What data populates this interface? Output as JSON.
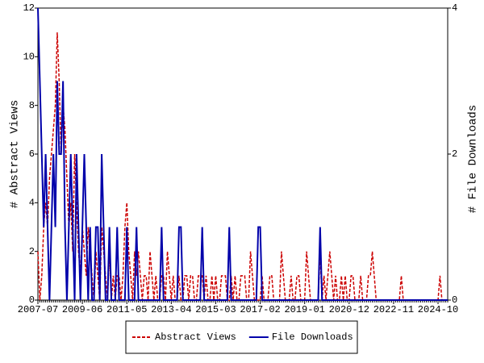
{
  "chart_data": {
    "type": "line",
    "categories": [
      "2007-07",
      null,
      null,
      null,
      null,
      null,
      null,
      null,
      null,
      null,
      null,
      null,
      null,
      null,
      null,
      null,
      null,
      null,
      null,
      null,
      null,
      null,
      null,
      "2009-06",
      null,
      null,
      null,
      null,
      null,
      null,
      null,
      null,
      null,
      null,
      null,
      null,
      null,
      null,
      null,
      null,
      null,
      null,
      null,
      null,
      null,
      null,
      "2011-05",
      null,
      null,
      null,
      null,
      null,
      null,
      null,
      null,
      null,
      null,
      null,
      null,
      null,
      null,
      null,
      null,
      null,
      null,
      null,
      null,
      null,
      null,
      "2013-04",
      null,
      null,
      null,
      null,
      null,
      null,
      null,
      null,
      null,
      null,
      null,
      null,
      null,
      null,
      null,
      null,
      null,
      null,
      null,
      null,
      null,
      null,
      "2015-03",
      null,
      null,
      null,
      null,
      null,
      null,
      null,
      null,
      null,
      null,
      null,
      null,
      null,
      null,
      null,
      null,
      null,
      null,
      null,
      null,
      null,
      null,
      "2017-02",
      null,
      null,
      null,
      null,
      null,
      null,
      null,
      null,
      null,
      null,
      null,
      null,
      null,
      null,
      null,
      null,
      null,
      null,
      null,
      null,
      null,
      null,
      "2019-01",
      null,
      null,
      null,
      null,
      null,
      null,
      null,
      null,
      null,
      null,
      null,
      null,
      null,
      null,
      null,
      null,
      null,
      null,
      null,
      null,
      null,
      null,
      "2020-12",
      null,
      null,
      null,
      null,
      null,
      null,
      null,
      null,
      null,
      null,
      null,
      null,
      null,
      null,
      null,
      null,
      null,
      null,
      null,
      null,
      null,
      null,
      "2022-11",
      null,
      null,
      null,
      null,
      null,
      null,
      null,
      null,
      null,
      null,
      null,
      null,
      null,
      null,
      null,
      null,
      null,
      null,
      null,
      null,
      null,
      null,
      "2024-10",
      null,
      null,
      null,
      null,
      null
    ],
    "series": [
      {
        "name": "Abstract Views",
        "color": "#cc0000",
        "line_style": "dashed",
        "axis": "y",
        "values": [
          2,
          0,
          1,
          3,
          4,
          3,
          5,
          6,
          7,
          8,
          11,
          9,
          6,
          8,
          7,
          5,
          3,
          4,
          2,
          6,
          4,
          2,
          1,
          3,
          2,
          1,
          3,
          2,
          1,
          0,
          2,
          1,
          0,
          3,
          2,
          1,
          0,
          2,
          0,
          1,
          0,
          1,
          1,
          0,
          1,
          3,
          4,
          2,
          1,
          0,
          2,
          1,
          2,
          1,
          0,
          1,
          1,
          0,
          2,
          1,
          0,
          1,
          0,
          0,
          1,
          1,
          0,
          2,
          1,
          0,
          1,
          0,
          0,
          1,
          0,
          0,
          1,
          1,
          0,
          1,
          1,
          0,
          0,
          1,
          1,
          1,
          0,
          1,
          0,
          0,
          1,
          0,
          1,
          0,
          0,
          1,
          1,
          1,
          0,
          0,
          1,
          0,
          1,
          0,
          0,
          1,
          1,
          1,
          0,
          0,
          2,
          1,
          0,
          0,
          0,
          0,
          1,
          0,
          0,
          0,
          1,
          1,
          0,
          0,
          0,
          0,
          2,
          1,
          0,
          0,
          0,
          1,
          0,
          0,
          1,
          1,
          0,
          0,
          0,
          2,
          1,
          0,
          0,
          0,
          0,
          0,
          2,
          0,
          1,
          0,
          1,
          2,
          1,
          0,
          1,
          0,
          0,
          1,
          0,
          1,
          0,
          0,
          1,
          1,
          0,
          0,
          0,
          1,
          0,
          0,
          0,
          1,
          1,
          2,
          1,
          0,
          0,
          0,
          0,
          0,
          0,
          0,
          0,
          0,
          0,
          0,
          0,
          0,
          1,
          0,
          0,
          0,
          0,
          0,
          0,
          0,
          0,
          0,
          0,
          0,
          0,
          0,
          0,
          0,
          0,
          0,
          0,
          0,
          1,
          0,
          0,
          0,
          0
        ]
      },
      {
        "name": "File Downloads",
        "color": "#0000aa",
        "line_style": "solid",
        "axis": "y2",
        "values": [
          4,
          3,
          2,
          1,
          2,
          1,
          0,
          1,
          2,
          1,
          3,
          2,
          2,
          3,
          1,
          0,
          1,
          2,
          1,
          0,
          2,
          1,
          0,
          1,
          2,
          1,
          0,
          1,
          0,
          0,
          1,
          1,
          0,
          2,
          1,
          0,
          0,
          1,
          0,
          0,
          0,
          1,
          0,
          0,
          0,
          0,
          1,
          0,
          0,
          0,
          0,
          1,
          0,
          0,
          0,
          0,
          0,
          0,
          0,
          0,
          0,
          0,
          0,
          0,
          1,
          0,
          0,
          0,
          0,
          0,
          0,
          0,
          0,
          1,
          1,
          0,
          0,
          0,
          0,
          0,
          0,
          0,
          0,
          0,
          0,
          1,
          0,
          0,
          0,
          0,
          0,
          0,
          0,
          0,
          0,
          0,
          0,
          0,
          0,
          1,
          0,
          0,
          0,
          0,
          0,
          0,
          0,
          0,
          0,
          0,
          0,
          0,
          0,
          0,
          1,
          1,
          0,
          0,
          0,
          0,
          0,
          0,
          0,
          0,
          0,
          0,
          0,
          0,
          0,
          0,
          0,
          0,
          0,
          0,
          0,
          0,
          0,
          0,
          0,
          0,
          0,
          0,
          0,
          0,
          0,
          0,
          1,
          0,
          0,
          0,
          0,
          0,
          0,
          0,
          0,
          0,
          0,
          0,
          0,
          0,
          0,
          0,
          0,
          0,
          0,
          0,
          0,
          0,
          0,
          0,
          0,
          0,
          0,
          0,
          0,
          0,
          0,
          0,
          0,
          0,
          0,
          0,
          0,
          0,
          0,
          0,
          0,
          0,
          0,
          0,
          0,
          0,
          0,
          0,
          0,
          0,
          0,
          0,
          0,
          0,
          0,
          0,
          0,
          0,
          0,
          0,
          0,
          0,
          0,
          0,
          0,
          0,
          0
        ]
      }
    ],
    "y_label": "# Abstract Views",
    "y2_label": "# File Downloads",
    "ylim": [
      0,
      12
    ],
    "yticks": [
      0,
      2,
      4,
      6,
      8,
      10,
      12
    ],
    "y2lim": [
      0,
      4
    ],
    "y2ticks": [
      0,
      2,
      4
    ],
    "legend": "bottom"
  }
}
